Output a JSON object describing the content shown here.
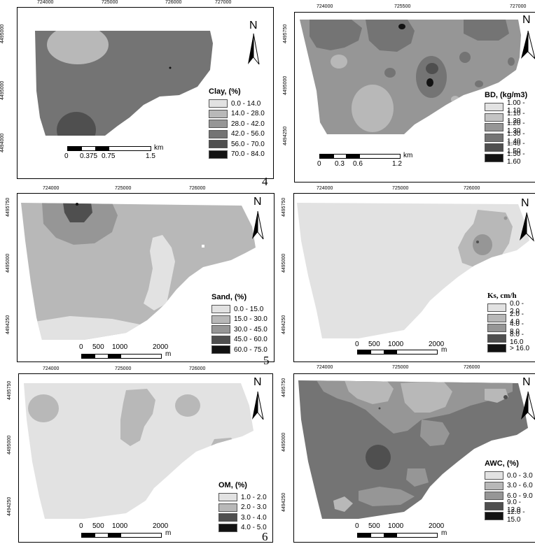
{
  "page_numbers": {
    "n4": "4",
    "n5": "5",
    "n6": "6"
  },
  "north_label": "N",
  "colors": {
    "c0": "#e2e2e2",
    "c1": "#b8b8b8",
    "c2": "#969696",
    "c3": "#747474",
    "c4": "#4f4f4f",
    "c5": "#121212"
  },
  "panels": {
    "clay": {
      "title": "Clay, (%)",
      "top_ticks": [
        "724000",
        "725000",
        "726000",
        "727000"
      ],
      "left_ticks": [
        "4495000",
        "4495000",
        "4494000"
      ],
      "legend": [
        "0.0 - 14.0",
        "14.0 - 28.0",
        "28.0 - 42.0",
        "42.0 - 56.0",
        "56.0 - 70.0",
        "70.0 - 84.0"
      ],
      "scale": {
        "labels": [
          "0",
          "0.375",
          "0.75",
          "1.5"
        ],
        "unit": "km"
      }
    },
    "bd": {
      "title": "BD, (kg/m3)",
      "top_ticks": [
        "724000",
        "725500",
        "727000"
      ],
      "left_ticks": [
        "4495750",
        "4495000",
        "4494250"
      ],
      "legend": [
        "1.00 - 1.10",
        "1.10 - 1.20",
        "1.20 - 1.30",
        "1.30 - 1.40",
        "1.40 - 1.50",
        "1.50 - 1.60"
      ],
      "scale": {
        "labels": [
          "0",
          "0.3",
          "0.6",
          "1.2"
        ],
        "unit": "km"
      }
    },
    "sand": {
      "title": "Sand, (%)",
      "top_ticks": [
        "724000",
        "725000",
        "726000"
      ],
      "left_ticks": [
        "4495750",
        "4495000",
        "4494250"
      ],
      "legend": [
        "0.0 - 15.0",
        "15.0 - 30.0",
        "30.0 - 45.0",
        "45.0 - 60.0",
        "60.0 - 75.0"
      ],
      "scale": {
        "labels": [
          "0",
          "500",
          "1000",
          "2000"
        ],
        "unit": "m"
      }
    },
    "ks": {
      "title": "Ks, cm/h",
      "top_ticks": [
        "724000",
        "725000",
        "726000"
      ],
      "left_ticks": [
        "4495750",
        "4495000",
        "4494250"
      ],
      "legend": [
        "0.0 - 2.0",
        "2.0 - 4.0",
        "4.0 - 8.0",
        "8.0 - 16.0",
        "> 16.0"
      ],
      "scale": {
        "labels": [
          "0",
          "500",
          "1000",
          "2000"
        ],
        "unit": "m"
      }
    },
    "om": {
      "title": "OM, (%)",
      "top_ticks": [
        "724000",
        "725000",
        "726000"
      ],
      "left_ticks": [
        "4495750",
        "4495000",
        "4494250"
      ],
      "legend": [
        "1.0 - 2.0",
        "2.0 - 3.0",
        "3.0 - 4.0",
        "4.0 - 5.0"
      ],
      "scale": {
        "labels": [
          "0",
          "500",
          "1000",
          "2000"
        ],
        "unit": "m"
      }
    },
    "awc": {
      "title": "AWC, (%)",
      "top_ticks": [
        "724000",
        "725000",
        "726000"
      ],
      "left_ticks": [
        "4495750",
        "4495000",
        "4494250"
      ],
      "legend": [
        "0.0 - 3.0",
        "3.0 - 6.0",
        "6.0 - 9.0",
        "9.0 - 12.0",
        "12.0 - 15.0"
      ],
      "scale": {
        "labels": [
          "0",
          "500",
          "1000",
          "2000"
        ],
        "unit": "m"
      }
    }
  }
}
